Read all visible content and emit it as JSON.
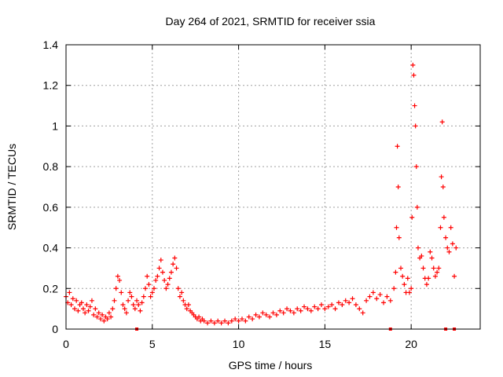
{
  "chart_data": {
    "type": "scatter",
    "title": "Day 264 of 2021, SRMTID for receiver ssia",
    "xlabel": "GPS time / hours",
    "ylabel": "SRMTID / TECUs",
    "xlim": [
      0,
      24
    ],
    "ylim": [
      0,
      1.4
    ],
    "xticks": [
      0,
      5,
      10,
      15,
      20
    ],
    "yticks": [
      0,
      0.2,
      0.4,
      0.6,
      0.8,
      1,
      1.2,
      1.4
    ],
    "xtick_labels": [
      "0",
      "5",
      "10",
      "15",
      "20"
    ],
    "ytick_labels": [
      "0",
      "0.2",
      "0.4",
      "0.6",
      "0.8",
      "1",
      "1.2",
      "1.4"
    ],
    "grid": true,
    "marker": "+",
    "series": [
      {
        "name": "SRMTID",
        "color": "#ff0000",
        "points": [
          [
            0.0,
            0.16
          ],
          [
            0.1,
            0.13
          ],
          [
            0.2,
            0.18
          ],
          [
            0.3,
            0.12
          ],
          [
            0.4,
            0.15
          ],
          [
            0.5,
            0.1
          ],
          [
            0.6,
            0.14
          ],
          [
            0.7,
            0.09
          ],
          [
            0.8,
            0.12
          ],
          [
            0.9,
            0.13
          ],
          [
            1.0,
            0.1
          ],
          [
            1.1,
            0.08
          ],
          [
            1.2,
            0.12
          ],
          [
            1.3,
            0.09
          ],
          [
            1.4,
            0.11
          ],
          [
            1.5,
            0.14
          ],
          [
            1.6,
            0.07
          ],
          [
            1.7,
            0.1
          ],
          [
            1.8,
            0.06
          ],
          [
            1.9,
            0.08
          ],
          [
            2.0,
            0.05
          ],
          [
            2.1,
            0.07
          ],
          [
            2.2,
            0.04
          ],
          [
            2.3,
            0.06
          ],
          [
            2.4,
            0.05
          ],
          [
            2.5,
            0.08
          ],
          [
            2.6,
            0.06
          ],
          [
            2.7,
            0.1
          ],
          [
            2.8,
            0.14
          ],
          [
            2.9,
            0.2
          ],
          [
            3.0,
            0.26
          ],
          [
            3.1,
            0.24
          ],
          [
            3.2,
            0.18
          ],
          [
            3.3,
            0.12
          ],
          [
            3.4,
            0.1
          ],
          [
            3.5,
            0.08
          ],
          [
            3.6,
            0.14
          ],
          [
            3.7,
            0.18
          ],
          [
            3.8,
            0.16
          ],
          [
            3.9,
            0.12
          ],
          [
            4.0,
            0.1
          ],
          [
            4.1,
            0.14
          ],
          [
            4.2,
            0.12
          ],
          [
            4.3,
            0.09
          ],
          [
            4.4,
            0.13
          ],
          [
            4.5,
            0.16
          ],
          [
            4.6,
            0.2
          ],
          [
            4.7,
            0.26
          ],
          [
            4.8,
            0.22
          ],
          [
            4.9,
            0.16
          ],
          [
            5.0,
            0.18
          ],
          [
            5.1,
            0.2
          ],
          [
            5.2,
            0.24
          ],
          [
            5.3,
            0.26
          ],
          [
            5.4,
            0.3
          ],
          [
            5.5,
            0.34
          ],
          [
            5.6,
            0.28
          ],
          [
            5.7,
            0.24
          ],
          [
            5.8,
            0.2
          ],
          [
            5.9,
            0.22
          ],
          [
            6.0,
            0.25
          ],
          [
            6.1,
            0.28
          ],
          [
            6.2,
            0.32
          ],
          [
            6.3,
            0.35
          ],
          [
            6.4,
            0.3
          ],
          [
            6.5,
            0.2
          ],
          [
            6.6,
            0.16
          ],
          [
            6.7,
            0.18
          ],
          [
            6.8,
            0.14
          ],
          [
            6.9,
            0.12
          ],
          [
            7.0,
            0.1
          ],
          [
            7.1,
            0.12
          ],
          [
            7.2,
            0.09
          ],
          [
            7.3,
            0.08
          ],
          [
            7.4,
            0.07
          ],
          [
            7.5,
            0.06
          ],
          [
            7.6,
            0.05
          ],
          [
            7.7,
            0.06
          ],
          [
            7.8,
            0.04
          ],
          [
            7.9,
            0.05
          ],
          [
            8.0,
            0.04
          ],
          [
            8.2,
            0.03
          ],
          [
            8.4,
            0.04
          ],
          [
            8.6,
            0.03
          ],
          [
            8.8,
            0.04
          ],
          [
            9.0,
            0.03
          ],
          [
            9.2,
            0.04
          ],
          [
            9.4,
            0.03
          ],
          [
            9.6,
            0.04
          ],
          [
            9.8,
            0.05
          ],
          [
            10.0,
            0.04
          ],
          [
            10.2,
            0.05
          ],
          [
            10.4,
            0.04
          ],
          [
            10.6,
            0.06
          ],
          [
            10.8,
            0.05
          ],
          [
            11.0,
            0.07
          ],
          [
            11.2,
            0.06
          ],
          [
            11.4,
            0.08
          ],
          [
            11.6,
            0.07
          ],
          [
            11.8,
            0.06
          ],
          [
            12.0,
            0.08
          ],
          [
            12.2,
            0.07
          ],
          [
            12.4,
            0.09
          ],
          [
            12.6,
            0.08
          ],
          [
            12.8,
            0.1
          ],
          [
            13.0,
            0.09
          ],
          [
            13.2,
            0.08
          ],
          [
            13.4,
            0.1
          ],
          [
            13.6,
            0.09
          ],
          [
            13.8,
            0.11
          ],
          [
            14.0,
            0.1
          ],
          [
            14.2,
            0.09
          ],
          [
            14.4,
            0.11
          ],
          [
            14.6,
            0.1
          ],
          [
            14.8,
            0.12
          ],
          [
            15.0,
            0.1
          ],
          [
            15.2,
            0.11
          ],
          [
            15.4,
            0.12
          ],
          [
            15.6,
            0.1
          ],
          [
            15.8,
            0.13
          ],
          [
            16.0,
            0.12
          ],
          [
            16.2,
            0.14
          ],
          [
            16.4,
            0.13
          ],
          [
            16.6,
            0.15
          ],
          [
            16.8,
            0.12
          ],
          [
            17.0,
            0.1
          ],
          [
            17.2,
            0.08
          ],
          [
            17.4,
            0.14
          ],
          [
            17.6,
            0.16
          ],
          [
            17.8,
            0.18
          ],
          [
            18.0,
            0.15
          ],
          [
            18.2,
            0.17
          ],
          [
            18.4,
            0.13
          ],
          [
            18.6,
            0.16
          ],
          [
            18.8,
            0.14
          ],
          [
            19.0,
            0.2
          ],
          [
            19.1,
            0.28
          ],
          [
            19.15,
            0.5
          ],
          [
            19.2,
            0.9
          ],
          [
            19.25,
            0.7
          ],
          [
            19.3,
            0.45
          ],
          [
            19.4,
            0.3
          ],
          [
            19.5,
            0.26
          ],
          [
            19.6,
            0.22
          ],
          [
            19.7,
            0.18
          ],
          [
            19.8,
            0.25
          ],
          [
            19.9,
            0.18
          ],
          [
            20.0,
            0.2
          ],
          [
            20.05,
            0.55
          ],
          [
            20.1,
            1.3
          ],
          [
            20.15,
            1.25
          ],
          [
            20.2,
            1.1
          ],
          [
            20.25,
            1.0
          ],
          [
            20.3,
            0.8
          ],
          [
            20.35,
            0.6
          ],
          [
            20.4,
            0.4
          ],
          [
            20.5,
            0.35
          ],
          [
            20.6,
            0.36
          ],
          [
            20.7,
            0.3
          ],
          [
            20.8,
            0.25
          ],
          [
            20.9,
            0.22
          ],
          [
            21.0,
            0.25
          ],
          [
            21.1,
            0.38
          ],
          [
            21.2,
            0.35
          ],
          [
            21.3,
            0.3
          ],
          [
            21.4,
            0.26
          ],
          [
            21.5,
            0.28
          ],
          [
            21.6,
            0.3
          ],
          [
            21.7,
            0.5
          ],
          [
            21.75,
            0.75
          ],
          [
            21.8,
            1.02
          ],
          [
            21.85,
            0.7
          ],
          [
            21.9,
            0.55
          ],
          [
            22.0,
            0.45
          ],
          [
            22.1,
            0.4
          ],
          [
            22.2,
            0.38
          ],
          [
            22.3,
            0.5
          ],
          [
            22.4,
            0.42
          ],
          [
            22.5,
            0.26
          ],
          [
            22.6,
            0.4
          ]
        ]
      }
    ],
    "outliers_at_zero": [
      4.1,
      18.8,
      22.0,
      22.5
    ]
  }
}
